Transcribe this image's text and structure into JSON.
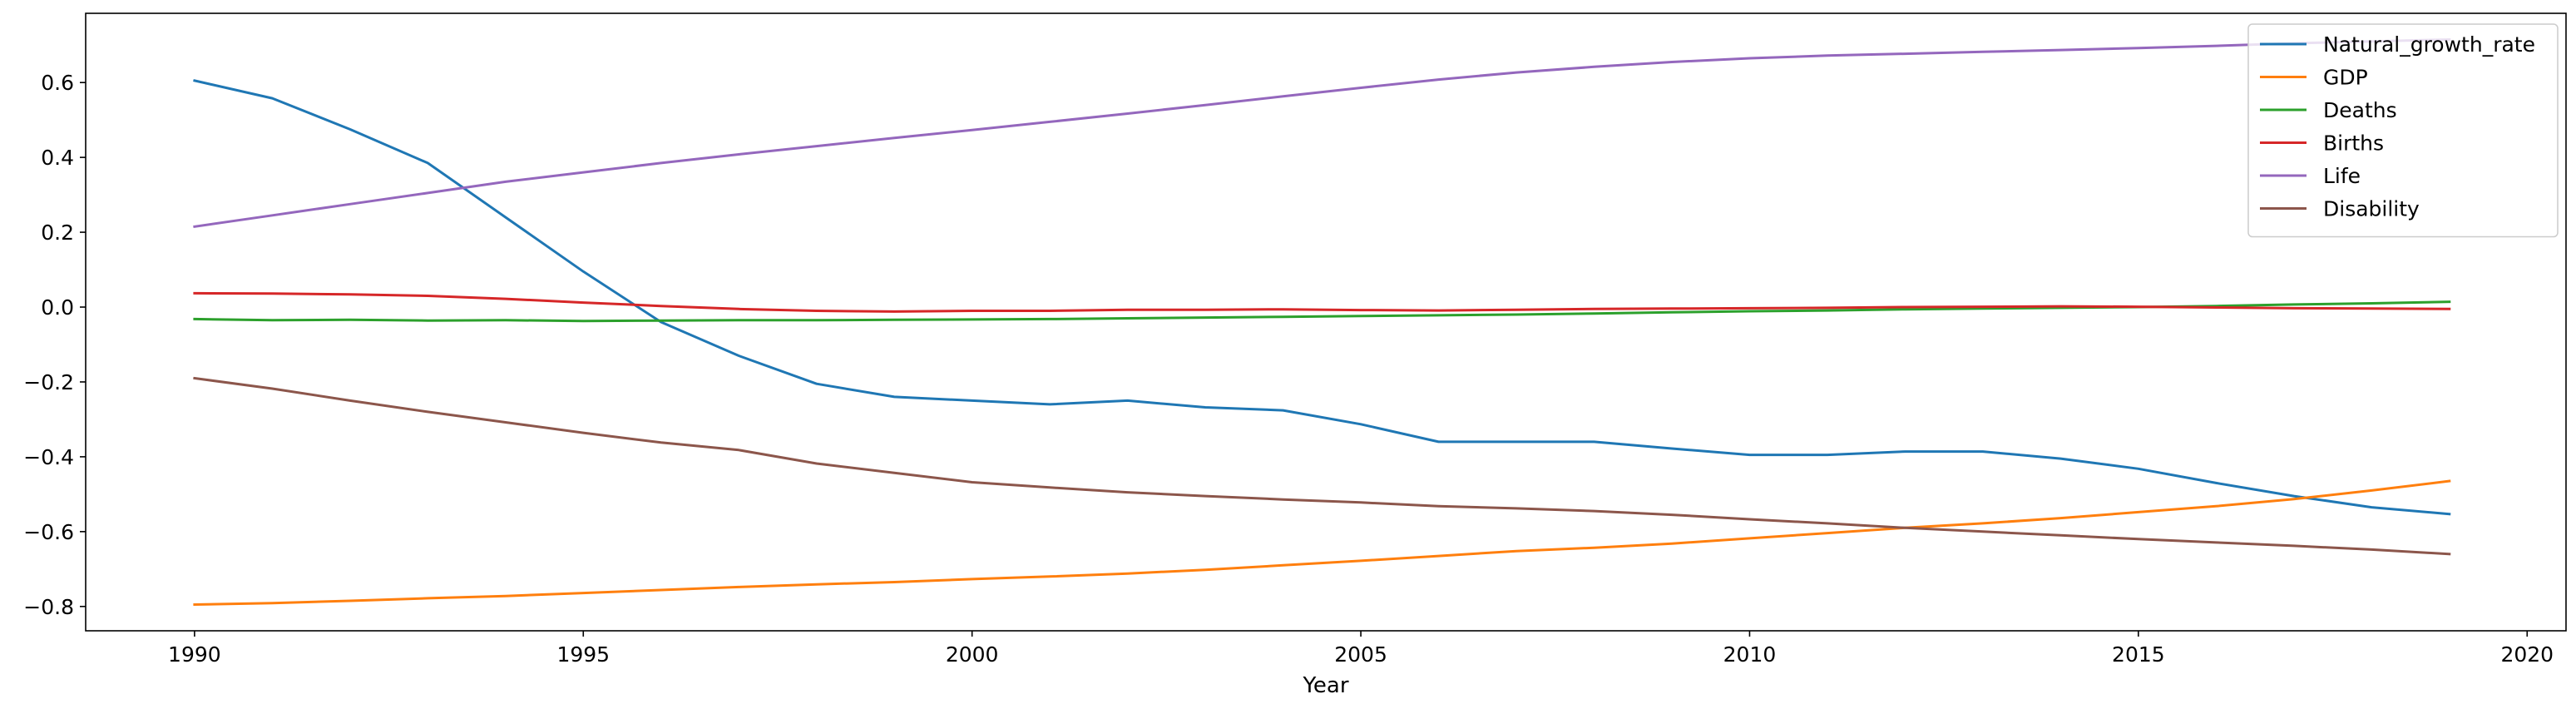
{
  "chart_data": {
    "type": "line",
    "xlabel": "Year",
    "ylabel": "",
    "title": "",
    "xlim": [
      1988.6,
      2020.5
    ],
    "ylim": [
      -0.865,
      0.785
    ],
    "xticks": [
      1990,
      1995,
      2000,
      2005,
      2010,
      2015,
      2020
    ],
    "yticks": [
      -0.8,
      -0.6,
      -0.4,
      -0.2,
      0.0,
      0.2,
      0.4,
      0.6
    ],
    "ytick_labels": [
      "−0.8",
      "−0.6",
      "−0.4",
      "−0.2",
      "0.0",
      "0.2",
      "0.4",
      "0.6"
    ],
    "grid": false,
    "legend_position": "top-right",
    "x": [
      1990,
      1991,
      1992,
      1993,
      1994,
      1995,
      1996,
      1997,
      1998,
      1999,
      2000,
      2001,
      2002,
      2003,
      2004,
      2005,
      2006,
      2007,
      2008,
      2009,
      2010,
      2011,
      2012,
      2013,
      2014,
      2015,
      2016,
      2017,
      2018,
      2019
    ],
    "series": [
      {
        "name": "Natural_growth_rate",
        "color": "#1f77b4",
        "values": [
          0.605,
          0.558,
          0.475,
          0.385,
          0.24,
          0.095,
          -0.04,
          -0.13,
          -0.205,
          -0.24,
          -0.25,
          -0.26,
          -0.25,
          -0.268,
          -0.276,
          -0.313,
          -0.36,
          -0.36,
          -0.36,
          -0.378,
          -0.395,
          -0.395,
          -0.386,
          -0.386,
          -0.405,
          -0.432,
          -0.47,
          -0.505,
          -0.535,
          -0.553
        ]
      },
      {
        "name": "GDP",
        "color": "#ff7f0e",
        "values": [
          -0.795,
          -0.791,
          -0.785,
          -0.778,
          -0.772,
          -0.764,
          -0.756,
          -0.748,
          -0.741,
          -0.735,
          -0.727,
          -0.72,
          -0.712,
          -0.702,
          -0.69,
          -0.678,
          -0.665,
          -0.652,
          -0.643,
          -0.632,
          -0.618,
          -0.604,
          -0.59,
          -0.578,
          -0.564,
          -0.548,
          -0.532,
          -0.513,
          -0.49,
          -0.465
        ]
      },
      {
        "name": "Deaths",
        "color": "#2ca02c",
        "values": [
          -0.032,
          -0.035,
          -0.034,
          -0.036,
          -0.035,
          -0.037,
          -0.036,
          -0.035,
          -0.035,
          -0.034,
          -0.033,
          -0.032,
          -0.03,
          -0.028,
          -0.026,
          -0.024,
          -0.022,
          -0.02,
          -0.017,
          -0.014,
          -0.011,
          -0.009,
          -0.006,
          -0.004,
          -0.002,
          0.0,
          0.003,
          0.007,
          0.01,
          0.014
        ]
      },
      {
        "name": "Births",
        "color": "#d62728",
        "values": [
          0.037,
          0.036,
          0.034,
          0.03,
          0.022,
          0.012,
          0.003,
          -0.005,
          -0.01,
          -0.012,
          -0.01,
          -0.01,
          -0.007,
          -0.007,
          -0.006,
          -0.008,
          -0.009,
          -0.007,
          -0.005,
          -0.004,
          -0.003,
          -0.002,
          0.0,
          0.001,
          0.002,
          0.001,
          -0.001,
          -0.003,
          -0.004,
          -0.005
        ]
      },
      {
        "name": "Life",
        "color": "#9467bd",
        "values": [
          0.215,
          0.245,
          0.275,
          0.305,
          0.335,
          0.36,
          0.385,
          0.408,
          0.43,
          0.452,
          0.473,
          0.495,
          0.517,
          0.54,
          0.563,
          0.586,
          0.608,
          0.627,
          0.642,
          0.655,
          0.665,
          0.672,
          0.677,
          0.682,
          0.687,
          0.692,
          0.698,
          0.705,
          0.71,
          0.715
        ]
      },
      {
        "name": "Disability",
        "color": "#8c564b",
        "values": [
          -0.19,
          -0.218,
          -0.25,
          -0.28,
          -0.308,
          -0.336,
          -0.362,
          -0.382,
          -0.418,
          -0.443,
          -0.468,
          -0.482,
          -0.495,
          -0.505,
          -0.514,
          -0.522,
          -0.532,
          -0.538,
          -0.545,
          -0.555,
          -0.567,
          -0.578,
          -0.59,
          -0.6,
          -0.61,
          -0.62,
          -0.629,
          -0.638,
          -0.648,
          -0.66
        ]
      }
    ]
  }
}
